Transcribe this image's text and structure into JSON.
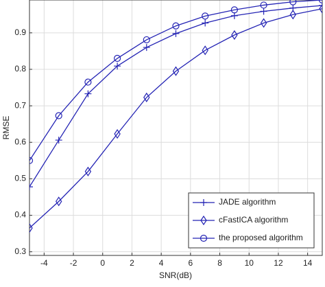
{
  "chart_data": {
    "type": "line",
    "x_label": "SNR(dB)",
    "y_label": "RMSE",
    "x": [
      -5,
      -3,
      -1,
      1,
      3,
      5,
      7,
      9,
      11,
      13,
      15
    ],
    "series": [
      {
        "name": "JADE algorithm",
        "color": "#2323b4",
        "marker": "plus",
        "values": [
          0.478,
          0.606,
          0.733,
          0.809,
          0.86,
          0.898,
          0.927,
          0.947,
          0.959,
          0.968,
          0.975
        ]
      },
      {
        "name": "cFastICA algorithm",
        "color": "#2323b4",
        "marker": "diamond",
        "values": [
          0.365,
          0.438,
          0.52,
          0.623,
          0.723,
          0.795,
          0.852,
          0.894,
          0.927,
          0.95,
          0.966
        ]
      },
      {
        "name": "the proposed algorithm",
        "color": "#2323b4",
        "marker": "circle",
        "values": [
          0.55,
          0.673,
          0.765,
          0.83,
          0.881,
          0.919,
          0.946,
          0.963,
          0.976,
          0.985,
          0.99
        ]
      }
    ],
    "xlim": [
      -5,
      15
    ],
    "xticks": [
      -4,
      -2,
      0,
      2,
      4,
      6,
      8,
      10,
      12,
      14
    ],
    "ylim": [
      0.29,
      0.99
    ],
    "yticks": [
      0.3,
      0.4,
      0.5,
      0.6,
      0.7,
      0.8,
      0.9
    ],
    "grid": true,
    "legend": "lower right"
  }
}
